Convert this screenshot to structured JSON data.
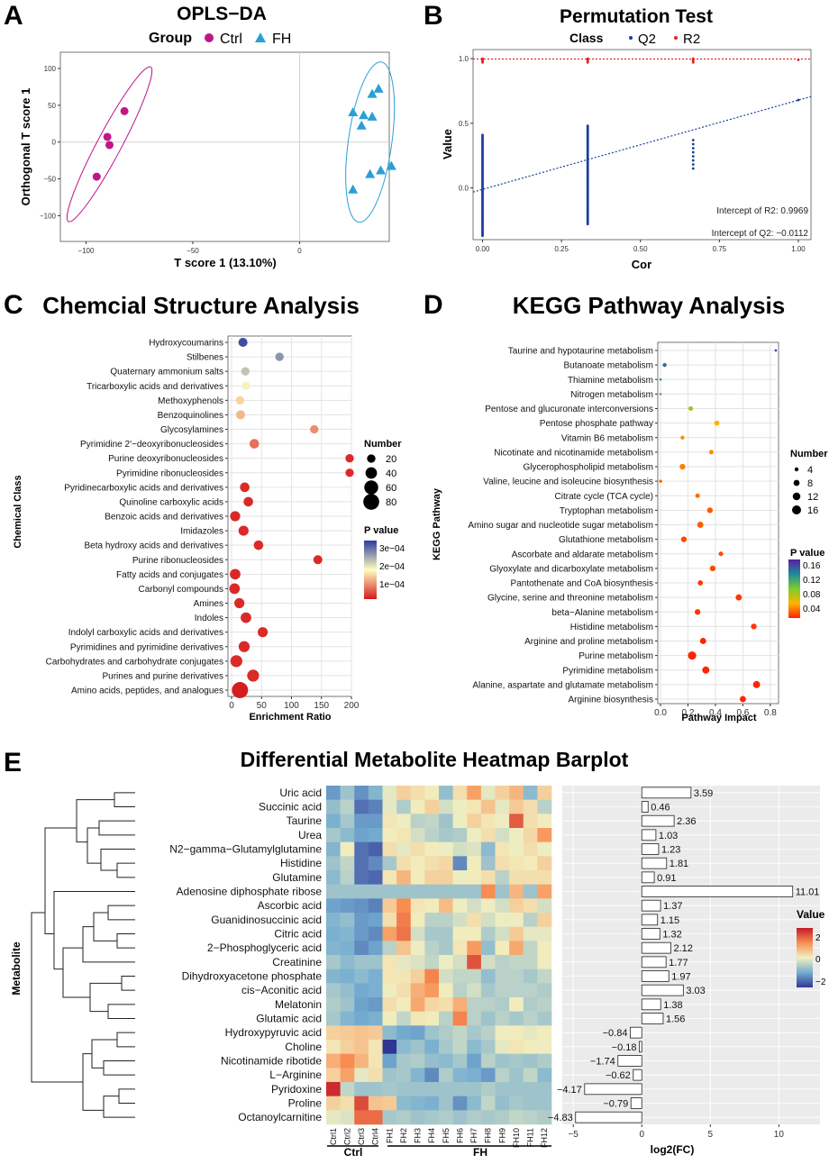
{
  "colors": {
    "ctrl": "#c0168a",
    "fh": "#2a9fd6",
    "q2": "#1a3e9e",
    "r2": "#e8231f",
    "panel_bg": "#ebebeb",
    "grid": "#d9d9d9"
  },
  "panels": {
    "A": {
      "letter": "A",
      "title": "OPLS−DA",
      "legend_title": "Group",
      "legend_items": [
        "Ctrl",
        "FH"
      ],
      "xlabel": "T score 1 (13.10%)",
      "ylabel": "Orthogonal T score 1",
      "xticks": [
        "−100",
        "−50",
        "0"
      ],
      "yticks": [
        "100",
        "50",
        "0",
        "−50",
        "−100"
      ]
    },
    "B": {
      "letter": "B",
      "title": "Permutation Test",
      "legend_title": "Class",
      "legend_items": [
        "Q2",
        "R2"
      ],
      "xlabel": "Cor",
      "ylabel": "Value",
      "xticks": [
        "0.00",
        "0.25",
        "0.50",
        "0.75",
        "1.00"
      ],
      "yticks": [
        "1.0",
        "0.5",
        "0.0"
      ],
      "intercept_r2": "Intercept of R2: 0.9969",
      "intercept_q2": "Intercept of Q2: −0.0112"
    },
    "C": {
      "letter": "C",
      "title": "Chemcial Structure Analysis",
      "xlabel": "Enrichment Ratio",
      "ylabel": "Chemical Class",
      "xticks": [
        "0",
        "50",
        "100",
        "150",
        "200"
      ],
      "size_legend_title": "Number",
      "size_legend_items": [
        "20",
        "40",
        "60",
        "80"
      ],
      "color_legend_title": "P value",
      "color_legend_items": [
        "3e−04",
        "2e−04",
        "1e−04"
      ]
    },
    "D": {
      "letter": "D",
      "title": "KEGG Pathway Analysis",
      "xlabel": "Pathway Impact",
      "ylabel": "KEGG Pathway",
      "xticks": [
        "0.0",
        "0.2",
        "0.4",
        "0.6",
        "0.8"
      ],
      "size_legend_title": "Number",
      "size_legend_items": [
        "4",
        "8",
        "12",
        "16"
      ],
      "color_legend_title": "P value",
      "color_legend_items": [
        "0.16",
        "0.12",
        "0.08",
        "0.04"
      ]
    },
    "E": {
      "letter": "E",
      "title": "Differential Metabolite Heatmap Barplot",
      "ylabel": "Metabolite",
      "xlabel_bar": "log2(FC)",
      "bar_xticks": [
        "−5",
        "0",
        "5",
        "10"
      ],
      "group_labels": [
        "Ctrl",
        "FH"
      ],
      "color_legend_title": "Value",
      "color_legend_items": [
        "2",
        "0",
        "−2"
      ]
    }
  },
  "chart_data": [
    {
      "id": "A",
      "type": "scatter",
      "title": "OPLS−DA",
      "xlabel": "T score 1 (13.10%)",
      "ylabel": "Orthogonal T score 1",
      "xlim": [
        -112,
        42
      ],
      "ylim": [
        -135,
        122
      ],
      "series": [
        {
          "name": "Ctrl",
          "points": [
            [
              -82,
              42
            ],
            [
              -90,
              7
            ],
            [
              -89,
              -4
            ],
            [
              -95,
              -47
            ]
          ]
        },
        {
          "name": "FH",
          "points": [
            [
              37,
              72
            ],
            [
              34,
              65
            ],
            [
              25,
              40
            ],
            [
              30,
              36
            ],
            [
              34,
              34
            ],
            [
              29,
              22
            ],
            [
              43,
              -33
            ],
            [
              38,
              -39
            ],
            [
              33,
              -44
            ],
            [
              25,
              -65
            ]
          ]
        }
      ],
      "ellipses": [
        {
          "name": "Ctrl",
          "cx": -89,
          "cy": -3,
          "rx": 145,
          "ry": 20,
          "angle": -62
        },
        {
          "name": "FH",
          "cx": 33,
          "cy": 0,
          "rx": 134,
          "ry": 36,
          "angle": -82
        }
      ]
    },
    {
      "id": "B",
      "type": "scatter",
      "title": "Permutation Test",
      "xlabel": "Cor",
      "ylabel": "Value",
      "xlim": [
        -0.03,
        1.04
      ],
      "ylim": [
        -0.4,
        1.07
      ],
      "series": [
        {
          "name": "Q2",
          "x_groups": [
            {
              "x": 0.0,
              "y_min": -0.37,
              "y_max": 0.41,
              "n": 90
            },
            {
              "x": 0.333,
              "y_min": -0.28,
              "y_max": 0.48,
              "n": 90
            },
            {
              "x": 0.667,
              "y_min": 0.15,
              "y_max": 0.37,
              "n": 8
            },
            {
              "x": 1.0,
              "y_min": 0.68,
              "y_max": 0.68,
              "n": 1
            }
          ]
        },
        {
          "name": "R2",
          "x_groups": [
            {
              "x": 0.0,
              "y_min": 0.97,
              "y_max": 1.0,
              "n": 6
            },
            {
              "x": 0.333,
              "y_min": 0.97,
              "y_max": 1.0,
              "n": 6
            },
            {
              "x": 0.667,
              "y_min": 0.97,
              "y_max": 1.0,
              "n": 6
            },
            {
              "x": 1.0,
              "y_min": 0.99,
              "y_max": 0.99,
              "n": 1
            }
          ]
        }
      ],
      "regression": {
        "R2": [
          0.9969,
          0.0
        ],
        "Q2": [
          -0.0112,
          0.69
        ]
      }
    },
    {
      "id": "C",
      "type": "scatter",
      "title": "Chemcial Structure Analysis",
      "xlabel": "Enrichment Ratio",
      "ylabel": "Chemical Class",
      "xlim": [
        -6,
        200
      ],
      "pvalue_range": [
        8e-06,
        0.000335
      ],
      "number_range": [
        5,
        90
      ],
      "categories": [
        "Hydroxycoumarins",
        "Stilbenes",
        "Quaternary ammonium salts",
        "Tricarboxylic acids and derivatives",
        "Methoxyphenols",
        "Benzoquinolines",
        "Glycosylamines",
        "Pyrimidine 2'−deoxyribonucleosides",
        "Purine deoxyribonucleosides",
        "Pyrimidine ribonucleosides",
        "Pyridinecarboxylic acids and derivatives",
        "Quinoline carboxylic acids",
        "Benzoic acids and derivatives",
        "Imidazoles",
        "Beta hydroxy acids and derivatives",
        "Purine ribonucleosides",
        "Fatty acids and conjugates",
        "Carbonyl compounds",
        "Amines",
        "Indoles",
        "Indolyl carboxylic acids and derivatives",
        "Pyrimidines and pyrimidine derivatives",
        "Carbohydrates and carbohydrate conjugates",
        "Purines and purine derivatives",
        "Amino acids, peptides, and analogues"
      ],
      "enrichment": [
        19,
        80,
        23,
        24,
        14,
        15,
        138,
        38,
        197,
        197,
        22,
        28,
        6,
        20,
        45,
        144,
        6,
        5,
        13,
        24,
        52,
        21,
        8,
        36,
        14
      ],
      "number": [
        14,
        12,
        12,
        12,
        12,
        14,
        12,
        16,
        12,
        12,
        16,
        16,
        18,
        18,
        16,
        14,
        20,
        20,
        18,
        20,
        18,
        22,
        26,
        26,
        50
      ],
      "pvalue": [
        0.00032,
        0.00026,
        0.00022,
        0.00018,
        0.00014,
        0.00012,
        9e-05,
        7e-05,
        2e-05,
        2e-05,
        2e-05,
        2e-05,
        2e-05,
        2e-05,
        2e-05,
        2e-05,
        2e-05,
        2e-05,
        2e-05,
        2e-05,
        2e-05,
        2e-05,
        2e-05,
        2e-05,
        1e-05
      ]
    },
    {
      "id": "D",
      "type": "scatter",
      "title": "KEGG Pathway Analysis",
      "xlabel": "Pathway Impact",
      "ylabel": "KEGG Pathway",
      "xlim": [
        -0.02,
        0.86
      ],
      "pvalue_range": [
        0.01,
        0.17
      ],
      "number_range": [
        2,
        17
      ],
      "categories": [
        "Taurine and hypotaurine metabolism",
        "Butanoate metabolism",
        "Thiamine metabolism",
        "Nitrogen metabolism",
        "Pentose and glucuronate interconversions",
        "Pentose phosphate pathway",
        "Vitamin B6 metabolism",
        "Nicotinate and nicotinamide metabolism",
        "Glycerophospholipid metabolism",
        "Valine, leucine and isoleucine biosynthesis",
        "Citrate cycle (TCA cycle)",
        "Tryptophan metabolism",
        "Amino sugar and nucleotide sugar metabolism",
        "Glutathione metabolism",
        "Ascorbate and aldarate metabolism",
        "Glyoxylate and dicarboxylate metabolism",
        "Pantothenate and CoA biosynthesis",
        "Glycine, serine and threonine metabolism",
        "beta−Alanine metabolism",
        "Histidine metabolism",
        "Arginine and proline metabolism",
        "Purine metabolism",
        "Pyrimidine metabolism",
        "Alanine, aspartate and glutamate metabolism",
        "Arginine biosynthesis"
      ],
      "impact": [
        0.84,
        0.03,
        0.0,
        0.0,
        0.22,
        0.41,
        0.16,
        0.37,
        0.16,
        0.0,
        0.27,
        0.36,
        0.29,
        0.17,
        0.44,
        0.38,
        0.29,
        0.57,
        0.27,
        0.68,
        0.31,
        0.23,
        0.33,
        0.7,
        0.6
      ],
      "number": [
        2,
        4,
        2,
        2,
        5,
        6,
        4,
        5,
        7,
        3,
        5,
        7,
        8,
        7,
        5,
        7,
        6,
        8,
        7,
        7,
        8,
        13,
        10,
        10,
        8
      ],
      "pvalue": [
        0.16,
        0.14,
        0.12,
        0.11,
        0.08,
        0.05,
        0.04,
        0.04,
        0.035,
        0.03,
        0.03,
        0.025,
        0.025,
        0.02,
        0.02,
        0.02,
        0.015,
        0.015,
        0.015,
        0.015,
        0.01,
        0.01,
        0.01,
        0.01,
        0.01
      ]
    },
    {
      "id": "E",
      "type": "heatmap",
      "title": "Differential Metabolite Heatmap Barplot",
      "rows": [
        "Uric acid",
        "Succinic acid",
        "Taurine",
        "Urea",
        "N2−gamma−Glutamylglutamine",
        "Histidine",
        "Glutamine",
        "Adenosine diphosphate ribose",
        "Ascorbic acid",
        "Guanidinosuccinic acid",
        "Citric acid",
        "2−Phosphoglyceric acid",
        "Creatinine",
        "Dihydroxyacetone phosphate",
        "cis−Aconitic acid",
        "Melatonin",
        "Glutamic acid",
        "Hydroxypyruvic acid",
        "Choline",
        "Nicotinamide ribotide",
        "L−Arginine",
        "Pyridoxine",
        "Proline",
        "Octanoylcarnitine"
      ],
      "columns": [
        "Ctrl1",
        "Ctrl2",
        "Ctrl3",
        "Ctrl4",
        "FH1",
        "FH2",
        "FH3",
        "FH4",
        "FH5",
        "FH6",
        "FH7",
        "FH8",
        "FH9",
        "FH10",
        "FH11",
        "FH12"
      ],
      "groups": [
        {
          "name": "Ctrl",
          "from": 0,
          "to": 3
        },
        {
          "name": "FH",
          "from": 4,
          "to": 15
        }
      ],
      "value_range": [
        -2.5,
        3.2
      ],
      "values": [
        [
          -1.3,
          -0.6,
          -1.4,
          -0.9,
          0.2,
          0.8,
          0.6,
          0.4,
          -0.7,
          0.6,
          1.5,
          0.2,
          0.8,
          1.2,
          -0.8,
          0.8
        ],
        [
          -0.7,
          -0.3,
          -1.8,
          -1.6,
          0.2,
          -0.4,
          0.4,
          0.8,
          0.0,
          0.3,
          0.5,
          1.0,
          0.2,
          0.9,
          0.6,
          -0.3
        ],
        [
          -1.0,
          -0.5,
          -1.3,
          -1.3,
          0.5,
          0.3,
          -0.3,
          -0.2,
          -0.6,
          0.3,
          0.8,
          0.5,
          0.3,
          2.4,
          0.6,
          0.4
        ],
        [
          -0.5,
          -0.8,
          -1.2,
          -1.1,
          0.4,
          0.5,
          0.0,
          -0.3,
          -0.5,
          -0.4,
          0.3,
          0.6,
          0.0,
          0.3,
          0.7,
          1.6
        ],
        [
          -0.9,
          0.4,
          -1.8,
          -2.0,
          0.6,
          0.2,
          0.6,
          0.4,
          0.3,
          0.0,
          0.1,
          -0.8,
          0.5,
          0.3,
          0.6,
          0.3
        ],
        [
          -0.6,
          -0.2,
          -1.8,
          -1.5,
          -0.5,
          0.6,
          0.4,
          0.6,
          0.7,
          -1.5,
          0.4,
          -0.6,
          0.6,
          0.5,
          0.4,
          0.8
        ],
        [
          -0.8,
          -0.3,
          -1.8,
          -1.9,
          0.5,
          1.2,
          0.4,
          0.8,
          0.8,
          0.3,
          0.4,
          0.6,
          -0.3,
          0.6,
          0.6,
          0.6
        ],
        [
          -0.6,
          -0.6,
          -0.6,
          -0.6,
          -0.6,
          -0.6,
          -0.6,
          -0.6,
          -0.6,
          -0.6,
          -0.6,
          1.8,
          -0.6,
          1.2,
          -0.6,
          1.5
        ],
        [
          -1.2,
          -1.3,
          -1.4,
          -1.6,
          0.9,
          1.8,
          0.5,
          0.4,
          1.1,
          0.3,
          0.0,
          0.3,
          0.0,
          0.8,
          0.6,
          0.0
        ],
        [
          -0.9,
          -0.7,
          -1.3,
          -1.2,
          0.6,
          2.0,
          0.4,
          -0.3,
          -0.3,
          0.0,
          0.6,
          0.0,
          0.3,
          0.3,
          -0.3,
          0.8
        ],
        [
          -1.0,
          -0.9,
          -1.3,
          -1.5,
          1.5,
          2.1,
          0.0,
          -0.5,
          -0.5,
          0.4,
          0.4,
          -0.4,
          0.0,
          0.9,
          0.2,
          0.2
        ],
        [
          -0.9,
          -1.0,
          -1.5,
          -1.2,
          -0.3,
          1.0,
          0.3,
          -0.3,
          -0.5,
          0.5,
          1.6,
          -0.7,
          0.4,
          1.4,
          -0.2,
          0.4
        ],
        [
          -0.5,
          -0.8,
          -0.6,
          -0.6,
          0.5,
          0.2,
          0.1,
          -0.2,
          0.3,
          0.0,
          2.5,
          0.0,
          -0.3,
          -0.2,
          -0.2,
          0.3
        ],
        [
          -0.9,
          -1.0,
          -0.8,
          -1.0,
          0.5,
          0.5,
          0.8,
          1.9,
          0.0,
          -0.2,
          -0.2,
          -0.7,
          -0.3,
          -0.3,
          -0.5,
          -0.2
        ],
        [
          -0.5,
          -0.7,
          -1.1,
          -1.0,
          0.3,
          0.6,
          1.3,
          1.6,
          0.4,
          -0.3,
          0.0,
          -0.5,
          -0.3,
          -0.3,
          -0.3,
          -0.4
        ],
        [
          -0.4,
          -0.6,
          -1.2,
          -1.3,
          0.6,
          0.4,
          1.4,
          0.7,
          0.6,
          1.3,
          -0.3,
          -0.3,
          -0.4,
          0.4,
          -0.4,
          -0.3
        ],
        [
          -0.5,
          -0.9,
          -1.1,
          -1.0,
          0.4,
          -0.2,
          0.5,
          0.4,
          -0.3,
          1.9,
          -0.3,
          -0.6,
          -0.3,
          -0.5,
          -0.3,
          -0.5
        ],
        [
          0.8,
          0.9,
          1.0,
          0.9,
          -0.8,
          -1.1,
          -1.2,
          -0.6,
          -0.4,
          -0.2,
          -0.5,
          -0.3,
          0.3,
          0.4,
          0.2,
          0.4
        ],
        [
          0.5,
          0.8,
          1.0,
          0.5,
          -2.6,
          -0.8,
          -0.6,
          -1.0,
          -0.5,
          -0.2,
          -0.8,
          -0.5,
          0.2,
          0.5,
          0.4,
          0.3
        ],
        [
          1.3,
          1.8,
          1.2,
          0.5,
          -1.2,
          -0.5,
          -0.4,
          -0.7,
          -0.8,
          -0.5,
          -1.2,
          -0.3,
          -0.6,
          -0.5,
          -0.6,
          -0.4
        ],
        [
          0.8,
          1.5,
          0.2,
          0.6,
          -0.6,
          -0.5,
          -0.9,
          -1.5,
          -0.4,
          -0.9,
          -1.0,
          -1.3,
          -0.3,
          -0.6,
          -0.2,
          -0.8
        ],
        [
          3.0,
          -0.2,
          -0.6,
          -0.6,
          -0.5,
          -0.6,
          -0.6,
          -0.6,
          -0.6,
          -0.6,
          -0.6,
          -0.4,
          -0.6,
          -0.6,
          -0.6,
          -0.6
        ],
        [
          0.8,
          0.6,
          2.6,
          1.0,
          0.9,
          -0.8,
          -0.9,
          -1.0,
          -0.6,
          -1.4,
          -0.8,
          -0.2,
          -0.7,
          -0.5,
          -0.6,
          -0.6
        ],
        [
          0.2,
          0.1,
          2.2,
          2.2,
          -0.5,
          -0.4,
          -0.6,
          -0.5,
          -0.4,
          -0.6,
          -0.4,
          -0.5,
          -0.4,
          -0.2,
          -0.3,
          -0.4
        ]
      ],
      "log2fc": [
        3.59,
        0.46,
        2.36,
        1.03,
        1.23,
        1.81,
        0.91,
        11.01,
        1.37,
        1.15,
        1.32,
        2.12,
        1.77,
        1.97,
        3.03,
        1.38,
        1.56,
        -0.84,
        -0.18,
        -1.74,
        -0.62,
        -4.17,
        -0.79,
        -4.83
      ],
      "bar_labels": [
        "3.59",
        "0.46",
        "2.36",
        "1.03",
        "1.23",
        "1.81",
        "0.91",
        "11.01",
        "1.37",
        "1.15",
        "1.32",
        "2.12",
        "1.77",
        "1.97",
        "3.03",
        "1.38",
        "1.56",
        "−0.84",
        "−0.18",
        "−1.74",
        "−0.62",
        "−4.17",
        "−0.79",
        "−4.83"
      ],
      "bar_xlim": [
        -5.8,
        13.0
      ]
    }
  ]
}
